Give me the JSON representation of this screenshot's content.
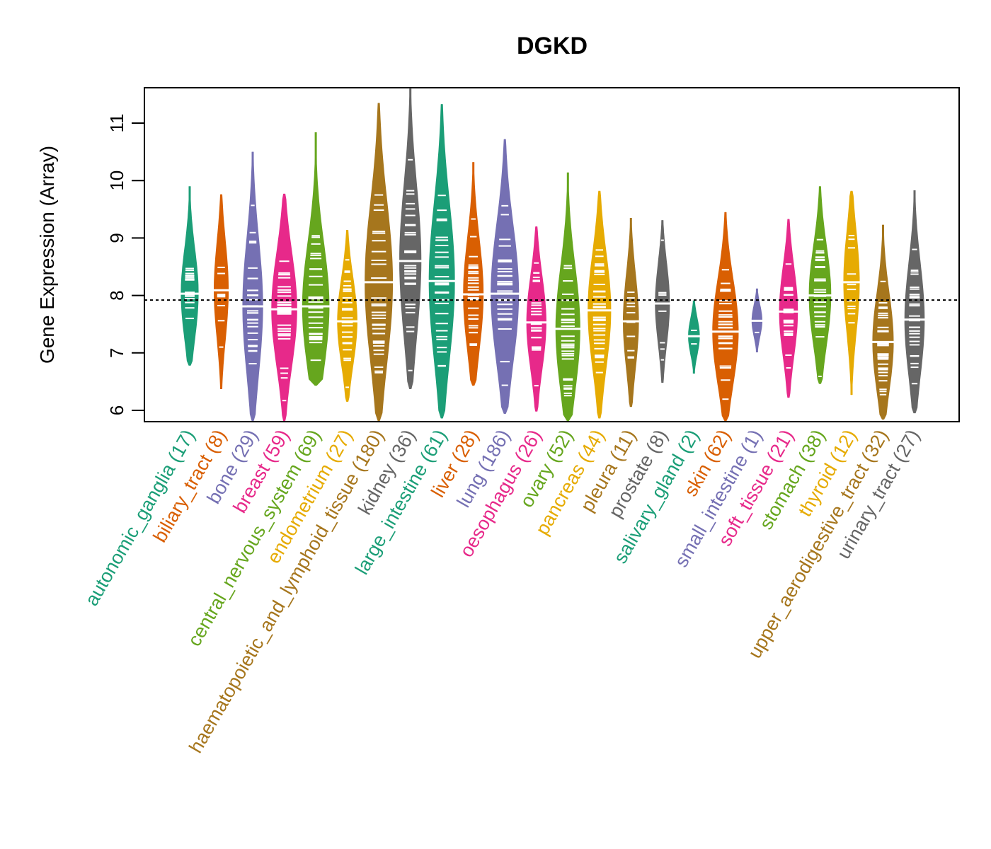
{
  "chart_data": {
    "type": "violin",
    "title": "DGKD",
    "xlabel": "",
    "ylabel": "Gene Expression (Array)",
    "ylim": [
      5.8,
      11.6
    ],
    "yticks": [
      6,
      7,
      8,
      9,
      10,
      11
    ],
    "reference_line": 7.92,
    "grid": false,
    "legend": "none",
    "categories": [
      {
        "name": "autonomic_ganglia",
        "n": 17,
        "label": "autonomic_ganglia (17)",
        "color": "#1B9E77",
        "min": 6.78,
        "max": 9.9,
        "median": 8.03
      },
      {
        "name": "biliary_tract",
        "n": 8,
        "label": "biliary_tract (8)",
        "color": "#D95F02",
        "min": 6.37,
        "max": 9.76,
        "median": 8.09
      },
      {
        "name": "bone",
        "n": 29,
        "label": "bone (29)",
        "color": "#7570B3",
        "min": 5.8,
        "max": 10.5,
        "median": 7.81
      },
      {
        "name": "breast",
        "n": 59,
        "label": "breast (59)",
        "color": "#E7298A",
        "min": 5.8,
        "max": 9.77,
        "median": 7.76
      },
      {
        "name": "central_nervous_system",
        "n": 69,
        "label": "central_nervous_system (69)",
        "color": "#66A61E",
        "min": 6.43,
        "max": 10.84,
        "median": 7.81
      },
      {
        "name": "endometrium",
        "n": 27,
        "label": "endometrium (27)",
        "color": "#E6AB02",
        "min": 6.15,
        "max": 9.14,
        "median": 7.55
      },
      {
        "name": "haematopoietic_and_lymphoid_tissue",
        "n": 180,
        "label": "haematopoietic_and_lymphoid_tissue (180)",
        "color": "#A6761D",
        "min": 5.8,
        "max": 11.35,
        "median": 8.23
      },
      {
        "name": "kidney",
        "n": 36,
        "label": "kidney (36)",
        "color": "#666666",
        "min": 6.37,
        "max": 11.6,
        "median": 8.6
      },
      {
        "name": "large_intestine",
        "n": 61,
        "label": "large_intestine (61)",
        "color": "#1B9E77",
        "min": 5.86,
        "max": 11.33,
        "median": 8.25
      },
      {
        "name": "liver",
        "n": 28,
        "label": "liver (28)",
        "color": "#D95F02",
        "min": 6.43,
        "max": 10.32,
        "median": 8.02
      },
      {
        "name": "lung",
        "n": 186,
        "label": "lung (186)",
        "color": "#7570B3",
        "min": 5.94,
        "max": 10.72,
        "median": 8.03
      },
      {
        "name": "oesophagus",
        "n": 26,
        "label": "oesophagus (26)",
        "color": "#E7298A",
        "min": 5.98,
        "max": 9.2,
        "median": 7.53
      },
      {
        "name": "ovary",
        "n": 52,
        "label": "ovary (52)",
        "color": "#66A61E",
        "min": 5.8,
        "max": 10.14,
        "median": 7.42
      },
      {
        "name": "pancreas",
        "n": 44,
        "label": "pancreas (44)",
        "color": "#E6AB02",
        "min": 5.86,
        "max": 9.82,
        "median": 7.74
      },
      {
        "name": "pleura",
        "n": 11,
        "label": "pleura (11)",
        "color": "#A6761D",
        "min": 6.06,
        "max": 9.35,
        "median": 7.55
      },
      {
        "name": "prostate",
        "n": 8,
        "label": "prostate (8)",
        "color": "#666666",
        "min": 6.48,
        "max": 9.31,
        "median": 7.86
      },
      {
        "name": "salivary_gland",
        "n": 2,
        "label": "salivary_gland (2)",
        "color": "#1B9E77",
        "min": 6.64,
        "max": 7.91,
        "median": 7.29
      },
      {
        "name": "skin",
        "n": 62,
        "label": "skin (62)",
        "color": "#D95F02",
        "min": 5.8,
        "max": 9.45,
        "median": 7.37
      },
      {
        "name": "small_intestine",
        "n": 1,
        "label": "small_intestine (1)",
        "color": "#7570B3",
        "min": 7.01,
        "max": 8.12,
        "median": 7.56
      },
      {
        "name": "soft_tissue",
        "n": 21,
        "label": "soft_tissue (21)",
        "color": "#E7298A",
        "min": 6.22,
        "max": 9.33,
        "median": 7.72
      },
      {
        "name": "stomach",
        "n": 38,
        "label": "stomach (38)",
        "color": "#66A61E",
        "min": 6.46,
        "max": 9.9,
        "median": 8.0
      },
      {
        "name": "thyroid",
        "n": 12,
        "label": "thyroid (12)",
        "color": "#E6AB02",
        "min": 6.27,
        "max": 9.82,
        "median": 8.23
      },
      {
        "name": "upper_aerodigestive_tract",
        "n": 32,
        "label": "upper_aerodigestive_tract (32)",
        "color": "#A6761D",
        "min": 5.84,
        "max": 9.23,
        "median": 7.19
      },
      {
        "name": "urinary_tract",
        "n": 27,
        "label": "urinary_tract (27)",
        "color": "#666666",
        "min": 5.95,
        "max": 9.83,
        "median": 7.58
      }
    ]
  }
}
